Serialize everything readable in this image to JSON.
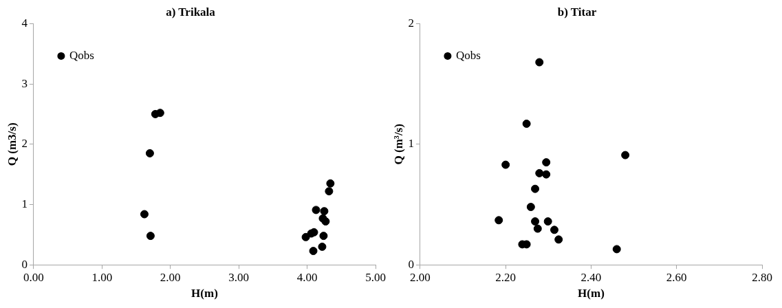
{
  "chart_data": [
    {
      "type": "scatter",
      "title": "a) Trikala",
      "xlabel": "H(m)",
      "ylabel": "Q (m3/s)",
      "xlim": [
        0,
        5
      ],
      "ylim": [
        0,
        4
      ],
      "xticks": [
        {
          "value": 0,
          "label": "0.00"
        },
        {
          "value": 1,
          "label": "1.00"
        },
        {
          "value": 2,
          "label": "2.00"
        },
        {
          "value": 3,
          "label": "3.00"
        },
        {
          "value": 4,
          "label": "4.00"
        },
        {
          "value": 5,
          "label": "5.00"
        }
      ],
      "yticks": [
        0,
        1,
        2,
        3,
        4
      ],
      "grid": false,
      "legend": "top left",
      "marker": "circle",
      "series": [
        {
          "name": "Qobs",
          "color": "#000000",
          "x": [
            1.78,
            1.85,
            1.7,
            1.62,
            1.71,
            4.34,
            4.32,
            4.13,
            4.25,
            4.23,
            4.27,
            3.98,
            4.06,
            4.1,
            4.24,
            4.22,
            4.09
          ],
          "values": [
            2.5,
            2.52,
            1.85,
            0.84,
            0.48,
            1.35,
            1.22,
            0.91,
            0.89,
            0.77,
            0.72,
            0.46,
            0.52,
            0.54,
            0.48,
            0.3,
            0.23
          ]
        }
      ]
    },
    {
      "type": "scatter",
      "title": "b) Titar",
      "xlabel": "H(m)",
      "ylabel": "Q (m³/s)",
      "xlim": [
        2,
        2.8
      ],
      "ylim": [
        0,
        2
      ],
      "xticks": [
        {
          "value": 2,
          "label": "2.00"
        },
        {
          "value": 2.2,
          "label": "2.20"
        },
        {
          "value": 2.4,
          "label": "2.40"
        },
        {
          "value": 2.6,
          "label": "2.60"
        },
        {
          "value": 2.8,
          "label": "2.80"
        }
      ],
      "yticks": [
        0,
        1,
        2
      ],
      "grid": false,
      "legend": "top left",
      "marker": "circle",
      "series": [
        {
          "name": "Qobs",
          "color": "#000000",
          "x": [
            2.279,
            2.249,
            2.48,
            2.2,
            2.295,
            2.279,
            2.295,
            2.269,
            2.259,
            2.184,
            2.269,
            2.299,
            2.275,
            2.314,
            2.324,
            2.239,
            2.249,
            2.46
          ],
          "values": [
            1.68,
            1.17,
            0.91,
            0.83,
            0.85,
            0.76,
            0.75,
            0.63,
            0.48,
            0.37,
            0.36,
            0.36,
            0.3,
            0.29,
            0.21,
            0.17,
            0.17,
            0.13
          ]
        }
      ]
    }
  ]
}
